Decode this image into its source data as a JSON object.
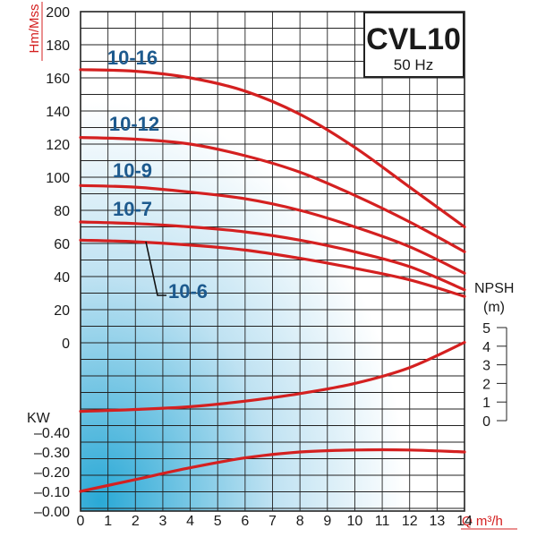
{
  "chart_data": {
    "type": "line",
    "title": "CVL10",
    "subtitle": "50 Hz",
    "colors": {
      "curve": "#d42020",
      "label": "#1d5a8e",
      "grid": "#222222",
      "axis_text_red": "#d42020"
    },
    "grid": true,
    "x_axis": {
      "label": "Q m³/h",
      "range": [
        0,
        14
      ],
      "ticks": [
        "0",
        "1",
        "2",
        "3",
        "4",
        "5",
        "6",
        "7",
        "8",
        "9",
        "10",
        "11",
        "12",
        "13",
        "14"
      ]
    },
    "head_axis": {
      "label": "Hm/Mss",
      "range": [
        0,
        200
      ],
      "ticks": [
        "0",
        "20",
        "40",
        "60",
        "80",
        "100",
        "120",
        "140",
        "160",
        "180",
        "200"
      ]
    },
    "npsh_axis": {
      "label_1": "NPSH",
      "label_2": "(m)",
      "range": [
        0,
        5
      ],
      "ticks": [
        "0",
        "1",
        "2",
        "3",
        "4",
        "5"
      ]
    },
    "power_axis": {
      "label": "KW",
      "range": [
        0,
        0.4
      ],
      "ticks": [
        "0.00",
        "0.10",
        "0.20",
        "0.30",
        "0.40"
      ],
      "tick_prefix": "–"
    },
    "head_series": [
      {
        "name": "10-16",
        "x": [
          0,
          2,
          4,
          6,
          8,
          10,
          12,
          14
        ],
        "values": [
          165,
          164,
          160,
          152,
          138,
          118,
          94,
          70
        ]
      },
      {
        "name": "10-12",
        "x": [
          0,
          2,
          4,
          6,
          8,
          10,
          12,
          14
        ],
        "values": [
          124,
          123,
          120,
          113,
          103,
          89,
          73,
          55
        ]
      },
      {
        "name": "10-9",
        "x": [
          0,
          2,
          4,
          6,
          8,
          10,
          12,
          14
        ],
        "values": [
          95,
          94,
          91,
          87,
          80,
          70,
          58,
          42
        ]
      },
      {
        "name": "10-7",
        "x": [
          0,
          2,
          4,
          6,
          8,
          10,
          12,
          14
        ],
        "values": [
          73,
          72,
          70,
          67,
          62,
          55,
          46,
          32
        ]
      },
      {
        "name": "10-6",
        "x": [
          0,
          2,
          4,
          6,
          8,
          10,
          12,
          14
        ],
        "values": [
          62,
          61,
          59,
          56,
          51,
          45,
          38,
          28
        ]
      }
    ],
    "npsh_series": {
      "x": [
        0,
        2,
        4,
        6,
        8,
        10,
        12,
        14
      ],
      "values": [
        0.5,
        0.6,
        0.75,
        1.05,
        1.45,
        2.0,
        2.85,
        4.2
      ]
    },
    "power_series": {
      "x": [
        0,
        2,
        4,
        6,
        8,
        10,
        12,
        14
      ],
      "values": [
        0.1,
        0.16,
        0.22,
        0.27,
        0.3,
        0.31,
        0.31,
        0.3
      ]
    }
  }
}
